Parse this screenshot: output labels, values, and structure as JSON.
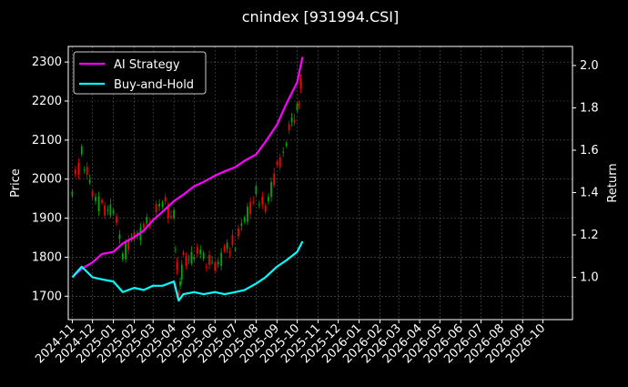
{
  "chart_data": {
    "type": "line",
    "title": "cnindex [931994.CSI]",
    "ylabel_left": "Price",
    "ylabel_right": "Return",
    "left_ylim": [
      1640,
      2340
    ],
    "right_ylim": [
      0.8,
      2.09
    ],
    "left_yticks": [
      1700,
      1800,
      1900,
      2000,
      2100,
      2200,
      2300
    ],
    "right_yticks": [
      1.0,
      1.2,
      1.4,
      1.6,
      1.8,
      2.0
    ],
    "right_ytick_labels": [
      "1.0",
      "1.2",
      "1.4",
      "1.6",
      "1.8",
      "2.0"
    ],
    "xlim": [
      "2024-10-26",
      "2026-11-14"
    ],
    "x_ticks": [
      "2024-11",
      "2024-12",
      "2025-01",
      "2025-02",
      "2025-03",
      "2025-04",
      "2025-05",
      "2025-06",
      "2025-07",
      "2025-08",
      "2025-09",
      "2025-10",
      "2025-11",
      "2025-12",
      "2026-01",
      "2026-02",
      "2026-03",
      "2026-04",
      "2026-05",
      "2026-06",
      "2026-07",
      "2026-08",
      "2026-09",
      "2026-10"
    ],
    "grid": true,
    "legend": {
      "placement": "top-left"
    },
    "series": [
      {
        "name": "AI Strategy",
        "color": "#ff00ff",
        "axis": "right",
        "x": [
          "2024-11-01",
          "2024-11-15",
          "2024-12-01",
          "2024-12-15",
          "2025-01-01",
          "2025-01-15",
          "2025-02-01",
          "2025-02-15",
          "2025-03-01",
          "2025-03-15",
          "2025-04-01",
          "2025-04-15",
          "2025-05-01",
          "2025-05-15",
          "2025-06-01",
          "2025-06-15",
          "2025-07-01",
          "2025-07-15",
          "2025-08-01",
          "2025-08-15",
          "2025-09-01",
          "2025-09-15",
          "2025-10-01",
          "2025-10-09"
        ],
        "values": [
          1.0,
          1.04,
          1.07,
          1.11,
          1.12,
          1.16,
          1.19,
          1.22,
          1.27,
          1.31,
          1.36,
          1.39,
          1.43,
          1.45,
          1.48,
          1.5,
          1.52,
          1.55,
          1.58,
          1.64,
          1.72,
          1.82,
          1.92,
          2.04
        ]
      },
      {
        "name": "Buy-and-Hold",
        "color": "#00ffff",
        "axis": "right",
        "x": [
          "2024-11-01",
          "2024-11-15",
          "2024-12-01",
          "2024-12-15",
          "2025-01-01",
          "2025-01-15",
          "2025-02-01",
          "2025-02-15",
          "2025-03-01",
          "2025-03-15",
          "2025-04-01",
          "2025-04-08",
          "2025-04-15",
          "2025-05-01",
          "2025-05-15",
          "2025-06-01",
          "2025-06-15",
          "2025-07-01",
          "2025-07-15",
          "2025-08-01",
          "2025-08-15",
          "2025-09-01",
          "2025-09-15",
          "2025-10-01",
          "2025-10-09"
        ],
        "values": [
          1.0,
          1.05,
          1.0,
          0.99,
          0.98,
          0.93,
          0.95,
          0.94,
          0.96,
          0.96,
          0.98,
          0.89,
          0.92,
          0.93,
          0.92,
          0.93,
          0.92,
          0.93,
          0.94,
          0.97,
          1.0,
          1.05,
          1.08,
          1.12,
          1.17
        ]
      },
      {
        "name": "Price",
        "axis": "left",
        "type": "candlestick",
        "colors": {
          "up": "#ff0000",
          "down": "#00aa00"
        },
        "x": [
          "2024-11-01",
          "2024-11-15",
          "2024-12-01",
          "2024-12-15",
          "2025-01-01",
          "2025-01-15",
          "2025-02-01",
          "2025-02-15",
          "2025-03-01",
          "2025-03-15",
          "2025-04-01",
          "2025-04-08",
          "2025-04-15",
          "2025-05-01",
          "2025-05-15",
          "2025-06-01",
          "2025-06-15",
          "2025-07-01",
          "2025-07-15",
          "2025-08-01",
          "2025-08-15",
          "2025-09-01",
          "2025-09-15",
          "2025-10-01",
          "2025-10-09"
        ],
        "values": [
          1970,
          2065,
          1960,
          1925,
          1930,
          1800,
          1860,
          1870,
          1915,
          1940,
          1900,
          1700,
          1790,
          1810,
          1800,
          1780,
          1810,
          1840,
          1900,
          1960,
          1920,
          2020,
          2100,
          2180,
          2270
        ]
      }
    ]
  }
}
